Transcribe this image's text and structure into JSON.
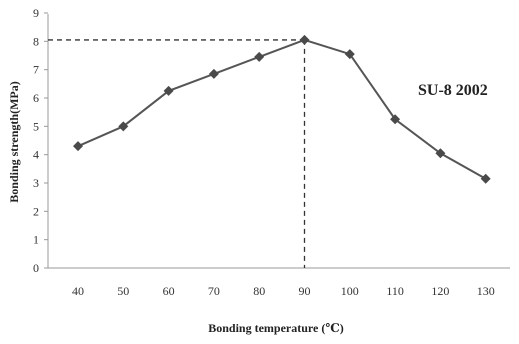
{
  "chart_data": {
    "type": "line",
    "x": [
      40,
      50,
      60,
      70,
      80,
      90,
      100,
      110,
      120,
      130
    ],
    "series": [
      {
        "values": [
          4.3,
          5.0,
          6.25,
          6.85,
          7.45,
          8.05,
          7.55,
          5.25,
          4.05,
          3.15
        ]
      }
    ],
    "xlabel": "Bonding temperature (℃)",
    "ylabel": "Bonding strength(MPa)",
    "ylim": [
      0,
      9
    ],
    "yticks": [
      "0",
      "1",
      "2",
      "3",
      "4",
      "5",
      "6",
      "7",
      "8",
      "9"
    ],
    "xticks": [
      "40",
      "50",
      "60",
      "70",
      "80",
      "90",
      "100",
      "110",
      "120",
      "130"
    ],
    "annotation": "SU-8 2002",
    "reference_point": {
      "x": 90,
      "y": 8.05
    },
    "grid": false,
    "line_color": "#555555",
    "marker": "diamond"
  }
}
